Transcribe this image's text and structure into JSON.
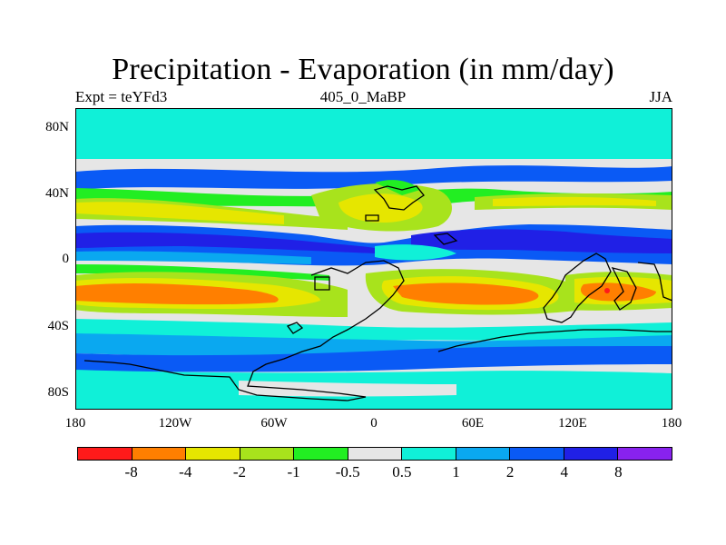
{
  "title": "Precipitation - Evaporation (in mm/day)",
  "subtitle_left": "Expt = teYFd3",
  "subtitle_center": "405_0_MaBP",
  "subtitle_right": "JJA",
  "lat_ticks": [
    "80N",
    "40N",
    "0",
    "40S",
    "80S"
  ],
  "lon_ticks": [
    "180",
    "120W",
    "60W",
    "0",
    "60E",
    "120E",
    "180"
  ],
  "colorbar": {
    "colors": [
      "#ff1a1a",
      "#ff7f00",
      "#e6e600",
      "#a8e31c",
      "#22ee22",
      "#e6e6e6",
      "#10f0d8",
      "#0aa8f0",
      "#0a5af5",
      "#2020e6",
      "#8822ee"
    ],
    "labels": [
      "-8",
      "-4",
      "-2",
      "-1",
      "-0.5",
      "0.5",
      "1",
      "2",
      "4",
      "8"
    ]
  }
}
